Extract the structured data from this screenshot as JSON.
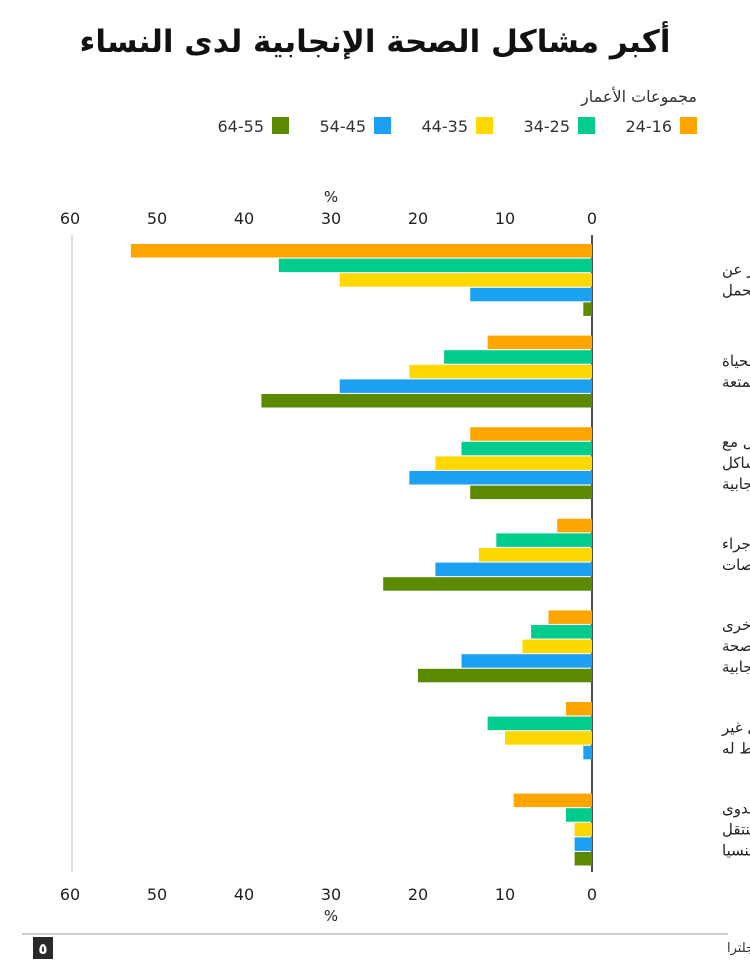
{
  "title": "أكبر مشاكل الصحة الإنجابية لدى النساء",
  "source": "المصدر: وكالة الصحة العمومية في إنجلترا",
  "logo_text": "٥",
  "chart_data": {
    "type": "bar",
    "orientation": "horizontal",
    "direction": "right-to-left",
    "title": "أكبر مشاكل الصحة الإنجابية لدى النساء",
    "legend_title": "مجموعات الأعمار",
    "legend_position": "top-right",
    "unit_label": "%",
    "xlim": [
      0,
      60
    ],
    "ticks": [
      "0",
      "10",
      "20",
      "30",
      "40",
      "50",
      "60"
    ],
    "grid": false,
    "categories": [
      [
        "العجز عن",
        "تحقيق الحمل"
      ],
      [
        "الحظي بحياة",
        "جنسية ممتعة"
      ],
      [
        "التعامل مع",
        "أعراض مشاكل",
        "الصحة الإنجابية"
      ],
      [
        "إجراء",
        "الفحوصات"
      ],
      [
        "أعراض أخرى",
        "متعلقة بالصحة",
        "الإنجابية"
      ],
      [
        "الحمل غير",
        "المخطط له"
      ],
      [
        "التقاط عدوى",
        "أو مرض منتقل",
        "جنسيا"
      ]
    ],
    "series": [
      {
        "name": "24-16",
        "color": "#FFA500",
        "values": [
          53,
          12,
          14,
          4,
          5,
          3,
          9
        ]
      },
      {
        "name": "34-25",
        "color": "#00CC8E",
        "values": [
          36,
          17,
          15,
          11,
          7,
          12,
          3
        ]
      },
      {
        "name": "44-35",
        "color": "#FFD800",
        "values": [
          29,
          21,
          18,
          13,
          8,
          10,
          2
        ]
      },
      {
        "name": "54-45",
        "color": "#1CA1F2",
        "values": [
          14,
          29,
          21,
          18,
          15,
          1,
          2
        ]
      },
      {
        "name": "64-55",
        "color": "#5B8A00",
        "values": [
          1,
          38,
          14,
          24,
          20,
          0,
          2
        ]
      }
    ]
  }
}
